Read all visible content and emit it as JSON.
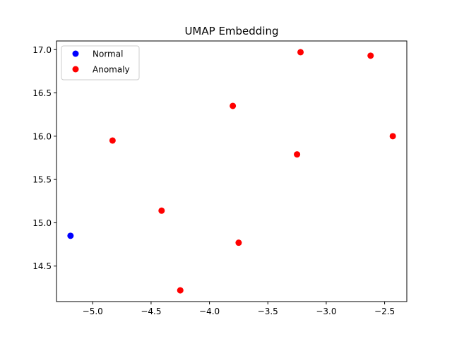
{
  "chart_data": {
    "type": "scatter",
    "title": "UMAP Embedding",
    "xlabel": "",
    "ylabel": "",
    "xlim": [
      -5.31,
      -2.31
    ],
    "ylim": [
      14.09,
      17.1
    ],
    "xticks": [
      -5.0,
      -4.5,
      -4.0,
      -3.5,
      -3.0,
      -2.5
    ],
    "xtick_labels": [
      "−5.0",
      "−4.5",
      "−4.0",
      "−3.5",
      "−3.0",
      "−2.5"
    ],
    "yticks": [
      14.5,
      15.0,
      15.5,
      16.0,
      16.5,
      17.0
    ],
    "ytick_labels": [
      "14.5",
      "15.0",
      "15.5",
      "16.0",
      "16.5",
      "17.0"
    ],
    "grid": false,
    "legend_position": "upper-left",
    "series": [
      {
        "name": "Normal",
        "color": "#0000ff",
        "points": [
          [
            -5.19,
            14.85
          ]
        ]
      },
      {
        "name": "Anomaly",
        "color": "#ff0000",
        "points": [
          [
            -4.83,
            15.95
          ],
          [
            -4.41,
            15.14
          ],
          [
            -4.25,
            14.22
          ],
          [
            -3.8,
            16.35
          ],
          [
            -3.75,
            14.77
          ],
          [
            -3.25,
            15.79
          ],
          [
            -3.22,
            16.97
          ],
          [
            -2.62,
            16.93
          ],
          [
            -2.43,
            16.0
          ]
        ]
      }
    ]
  }
}
